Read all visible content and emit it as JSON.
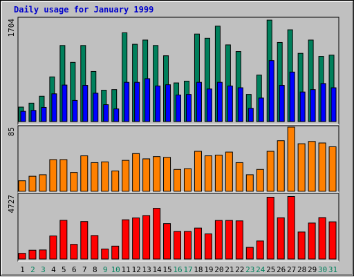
{
  "title": "Daily usage for January 1999",
  "colors": {
    "background": "#c0c0c0",
    "title": "#0000cc",
    "hits": "#00805c",
    "files": "#0000ff",
    "pages": "#ff8000",
    "kbytes": "#ff0000",
    "weekday_label": "#000000",
    "weekend_label": "#00805c"
  },
  "chart_data": [
    {
      "type": "bar",
      "panel": "top",
      "ymax_label": "1704",
      "ylim": [
        0,
        1704
      ],
      "categories": [
        "1",
        "2",
        "3",
        "4",
        "5",
        "6",
        "7",
        "8",
        "9",
        "10",
        "11",
        "12",
        "13",
        "14",
        "15",
        "16",
        "17",
        "18",
        "19",
        "20",
        "21",
        "22",
        "23",
        "24",
        "25",
        "26",
        "27",
        "28",
        "29",
        "30",
        "31"
      ],
      "series": [
        {
          "values": [
            240,
            305,
            420,
            740,
            1260,
            980,
            1260,
            830,
            520,
            530,
            1470,
            1280,
            1350,
            1260,
            1090,
            640,
            670,
            1450,
            1380,
            1580,
            1270,
            1160,
            450,
            770,
            1680,
            1310,
            1520,
            1130,
            1350,
            1080,
            1100
          ]
        },
        {
          "values": [
            170,
            185,
            235,
            460,
            605,
            350,
            600,
            470,
            280,
            210,
            650,
            650,
            710,
            590,
            610,
            440,
            450,
            650,
            540,
            650,
            590,
            560,
            220,
            390,
            1010,
            600,
            820,
            490,
            530,
            630,
            560
          ]
        }
      ]
    },
    {
      "type": "bar",
      "panel": "middle",
      "ymax_label": "85",
      "ylim": [
        0,
        85
      ],
      "categories": [
        "1",
        "2",
        "3",
        "4",
        "5",
        "6",
        "7",
        "8",
        "9",
        "10",
        "11",
        "12",
        "13",
        "14",
        "15",
        "16",
        "17",
        "18",
        "19",
        "20",
        "21",
        "22",
        "23",
        "24",
        "25",
        "26",
        "27",
        "28",
        "29",
        "30",
        "31"
      ],
      "series": [
        {
          "values": [
            14,
            20,
            22,
            42,
            42,
            25,
            47,
            38,
            39,
            27,
            41,
            50,
            43,
            46,
            45,
            29,
            30,
            53,
            47,
            48,
            52,
            38,
            22,
            29,
            53,
            67,
            85,
            63,
            66,
            64,
            59
          ]
        }
      ]
    },
    {
      "type": "bar",
      "panel": "bottom",
      "ymax_label": "4727",
      "ylim": [
        0,
        4727
      ],
      "categories": [
        "1",
        "2",
        "3",
        "4",
        "5",
        "6",
        "7",
        "8",
        "9",
        "10",
        "11",
        "12",
        "13",
        "14",
        "15",
        "16",
        "17",
        "18",
        "19",
        "20",
        "21",
        "22",
        "23",
        "24",
        "25",
        "26",
        "27",
        "28",
        "29",
        "30",
        "31"
      ],
      "series": [
        {
          "values": [
            420,
            650,
            670,
            1700,
            2850,
            1080,
            2760,
            1730,
            740,
            950,
            2890,
            3030,
            3200,
            3730,
            2610,
            2030,
            2030,
            2280,
            1850,
            2840,
            2840,
            2810,
            860,
            1330,
            4550,
            3040,
            4600,
            1990,
            2650,
            3050,
            2740
          ]
        }
      ]
    }
  ],
  "x_labels": {
    "days": [
      "1",
      "2",
      "3",
      "4",
      "5",
      "6",
      "7",
      "8",
      "9",
      "10",
      "11",
      "12",
      "13",
      "14",
      "15",
      "16",
      "17",
      "18",
      "19",
      "20",
      "21",
      "22",
      "23",
      "24",
      "25",
      "26",
      "27",
      "28",
      "29",
      "30",
      "31"
    ],
    "weekend_days": [
      "2",
      "3",
      "9",
      "10",
      "16",
      "17",
      "23",
      "24",
      "30",
      "31"
    ]
  }
}
